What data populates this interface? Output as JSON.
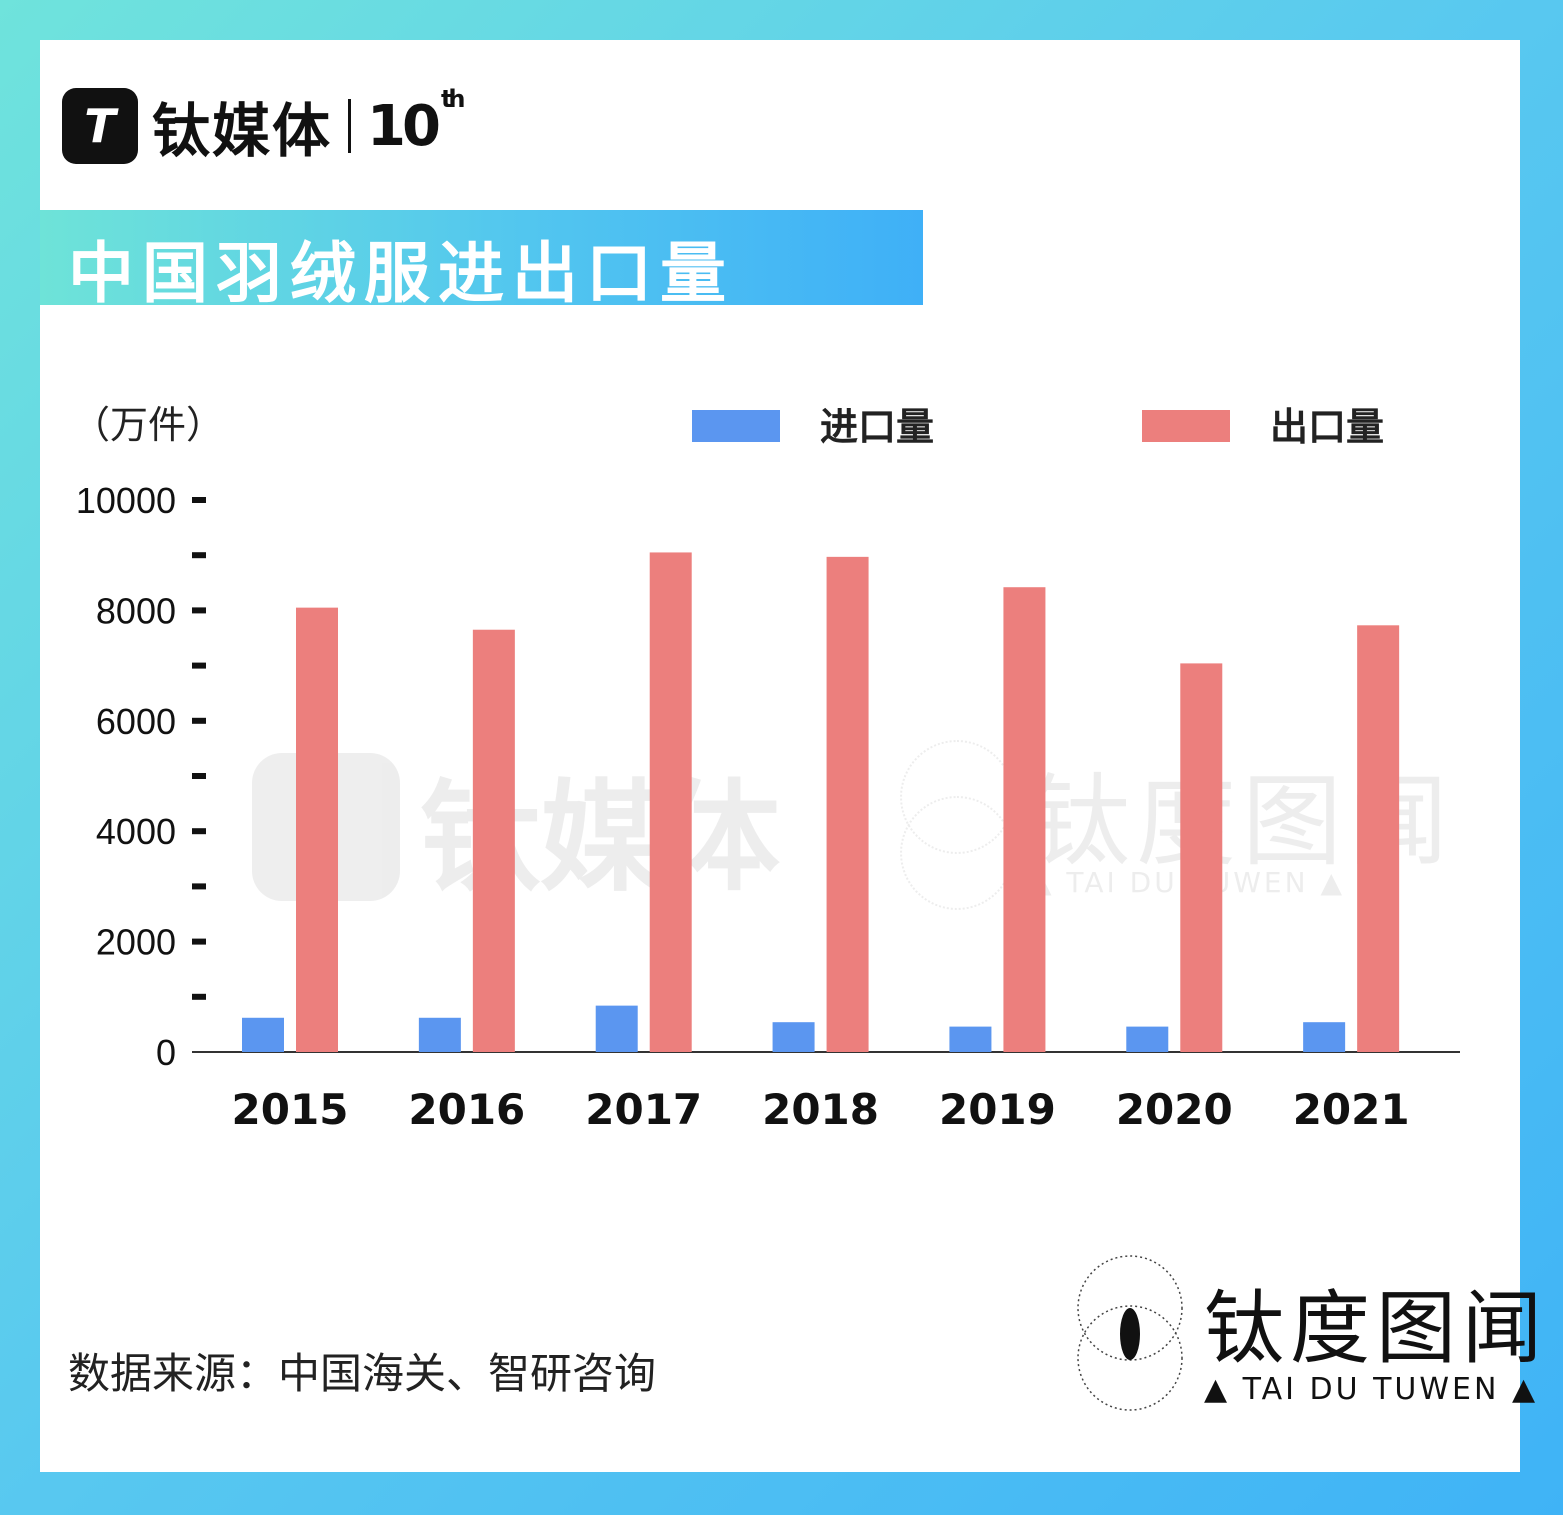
{
  "logo": {
    "mark": "T",
    "name": "钛媒体",
    "anniversary": "10",
    "anniversary_suffix": "th"
  },
  "title": "中国羽绒服进出口量",
  "source": "数据来源：中国海关、智研咨询",
  "brand": {
    "name": "钛度图闻",
    "subtitle": "▲ TAI DU TUWEN ▲"
  },
  "watermark": {
    "left": "钛媒体",
    "right": "钛度图闻",
    "right_sub": "▲ TAI DU TUWEN ▲"
  },
  "colors": {
    "import": "#5b96f0",
    "export": "#ec7f7d"
  },
  "chart_data": {
    "type": "bar",
    "unit_label": "（万件）",
    "categories": [
      "2015",
      "2016",
      "2017",
      "2018",
      "2019",
      "2020",
      "2021"
    ],
    "series": [
      {
        "name": "进口量",
        "values": [
          620,
          620,
          840,
          540,
          460,
          460,
          540
        ]
      },
      {
        "name": "出口量",
        "values": [
          8050,
          7650,
          9050,
          8970,
          8420,
          7040,
          7730
        ]
      }
    ],
    "ylim": [
      0,
      10000
    ],
    "yticks": [
      "0",
      "2000",
      "4000",
      "6000",
      "8000",
      "10000"
    ],
    "minor_step": 1000,
    "legend_position": "top"
  }
}
